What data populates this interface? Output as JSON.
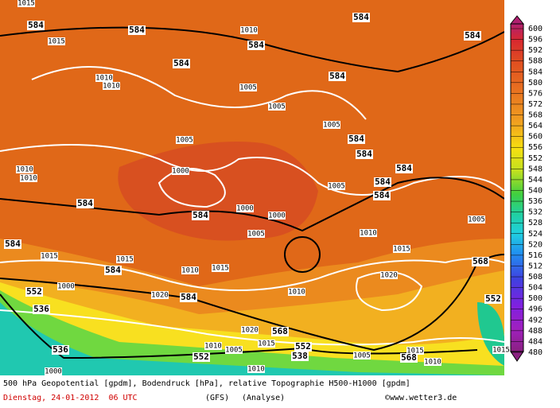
{
  "map": {
    "contour_labels": [
      "584",
      "584",
      "584",
      "584",
      "584",
      "584",
      "584",
      "584",
      "584",
      "584",
      "584",
      "584",
      "584",
      "584",
      "584",
      "584",
      "584",
      "568",
      "568",
      "568",
      "552",
      "552",
      "552",
      "552",
      "536",
      "536",
      "538"
    ],
    "pressure_labels": [
      "1015",
      "1015",
      "1010",
      "1010",
      "1010",
      "1005",
      "1005",
      "1005",
      "1005",
      "1010",
      "1010",
      "1000",
      "1005",
      "1000",
      "1000",
      "1005",
      "1010",
      "1005",
      "1015",
      "1015",
      "1015",
      "1010",
      "1020",
      "1010",
      "1020",
      "1015",
      "1020",
      "1010",
      "1005",
      "1015",
      "1010",
      "1000",
      "1005",
      "1015",
      "1010",
      "1015",
      "1000"
    ],
    "colorbar": {
      "labels": [
        "600",
        "596",
        "592",
        "588",
        "584",
        "580",
        "576",
        "572",
        "568",
        "564",
        "560",
        "556",
        "552",
        "548",
        "544",
        "540",
        "536",
        "532",
        "528",
        "524",
        "520",
        "516",
        "512",
        "508",
        "504",
        "500",
        "496",
        "492",
        "488",
        "484",
        "480"
      ]
    },
    "caption": {
      "line1": "500 hPa Geopotential [gpdm], Bodendruck [hPa], relative Topographie H500-H1000 [gpdm]",
      "date": "Dienstag, 24-01-2012  06 UTC",
      "model": "(GFS)",
      "run": "(Analyse)",
      "source": "©www.wetter3.de"
    }
  }
}
